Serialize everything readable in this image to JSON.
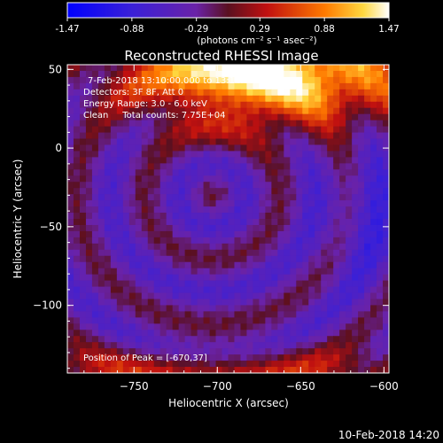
{
  "colorbar": {
    "ticks": [
      "-1.47",
      "-0.88",
      "-0.29",
      "0.29",
      "0.88",
      "1.47"
    ],
    "tick_values": [
      -1.47,
      -0.88,
      -0.29,
      0.29,
      0.88,
      1.47
    ],
    "range": [
      -1.47,
      1.47
    ],
    "units_label": "(photons cm⁻² s⁻¹ asec⁻²)"
  },
  "chart_data": {
    "type": "heatmap",
    "title": "Reconstructed RHESSI Image",
    "xlabel": "Heliocentric X (arcsec)",
    "ylabel": "Heliocentric Y (arcsec)",
    "xlim": [
      -790,
      -597
    ],
    "ylim": [
      -143,
      53
    ],
    "x_ticks": [
      -750,
      -700,
      -650,
      -600
    ],
    "x_tick_labels": [
      "−750",
      "−700",
      "−650",
      "−600"
    ],
    "y_ticks": [
      50,
      0,
      -50,
      -100
    ],
    "y_tick_labels": [
      "50",
      "0",
      "−50",
      "−100"
    ],
    "peak_position": [
      -670,
      37
    ],
    "colormap": "blue-purple-red-yellow-white"
  },
  "annotations": {
    "time_range": "7-Feb-2018 13:10:00.000 to 13:14:00.000",
    "detectors": "Detectors: 3F 8F, Att 0",
    "energy_range": "Energy Range: 3.0 - 6.0 keV",
    "method": "Clean     Total counts: 7.75E+04",
    "peak": "Position of Peak = [-670,37]"
  },
  "footer": {
    "timestamp": "10-Feb-2018 14:20"
  }
}
